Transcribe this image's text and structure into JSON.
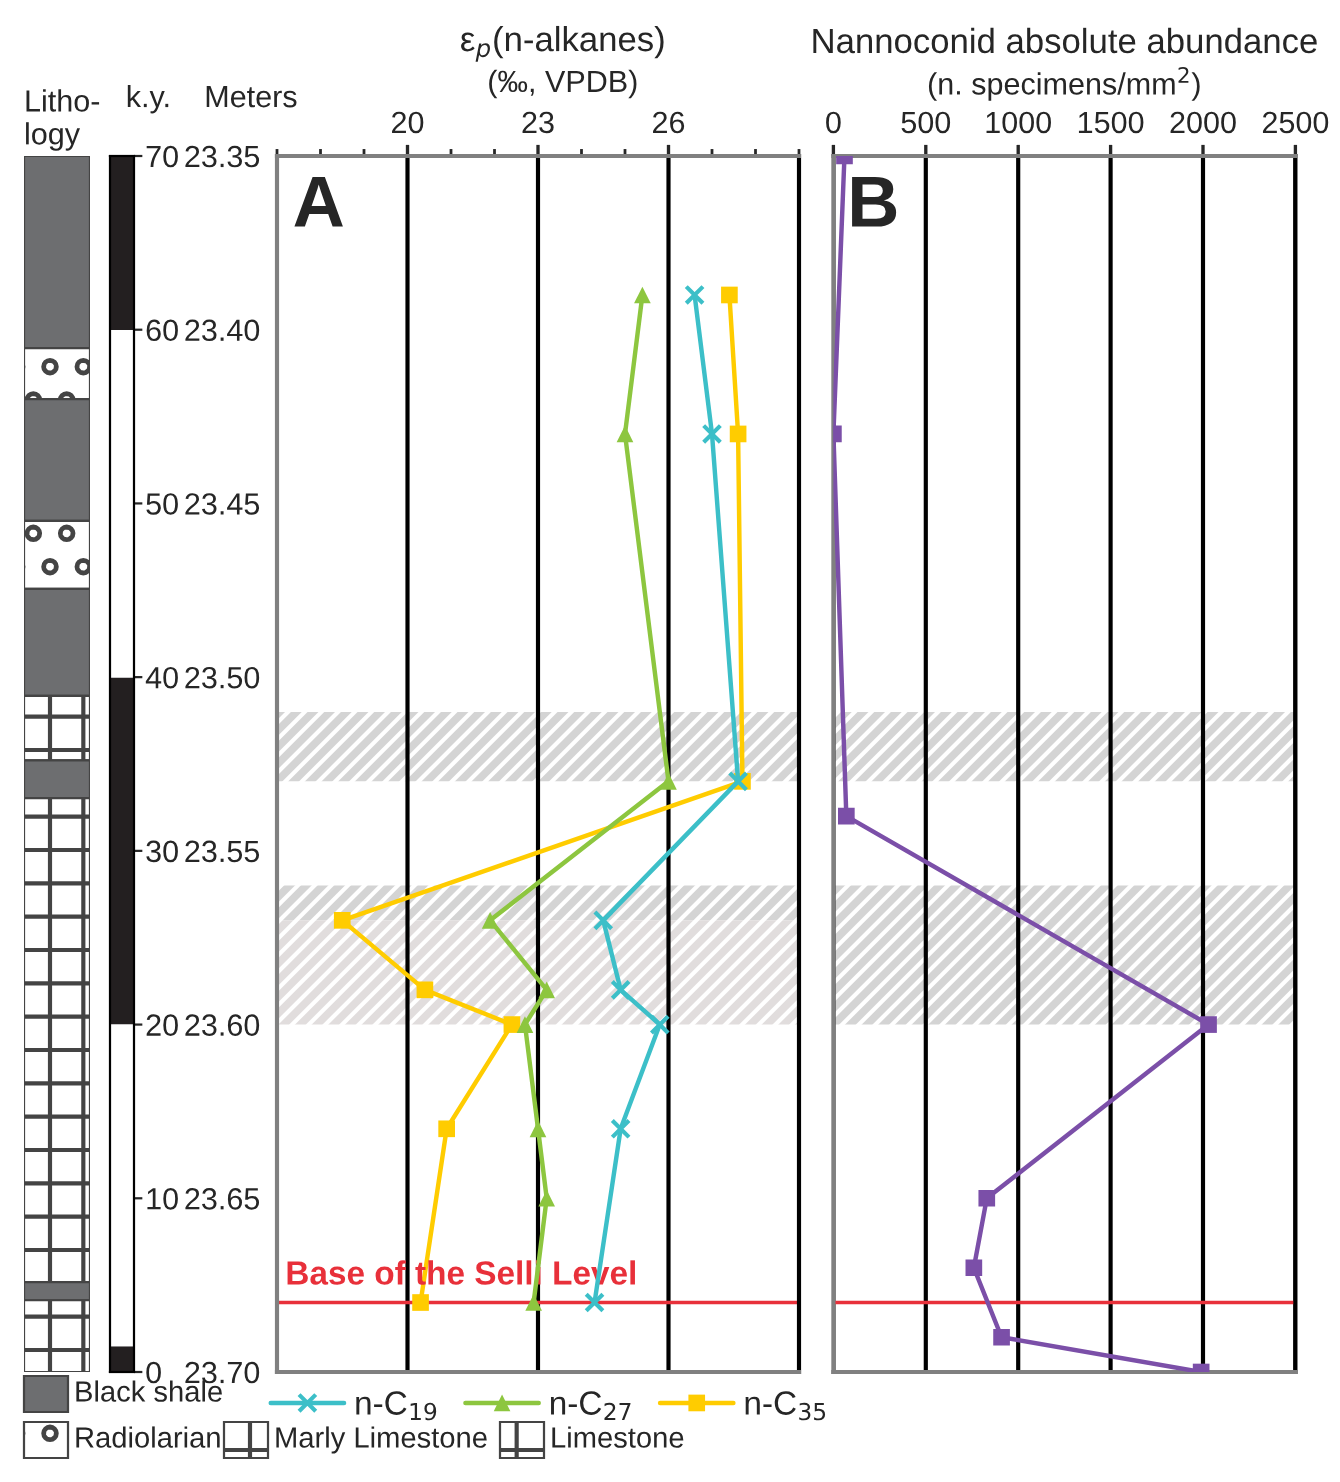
{
  "chart_data": [
    {
      "type": "line",
      "title": "ε$_{p}$(n-alkanes)",
      "subtitle": "(‰, VPDB)",
      "ylabel": "Meters",
      "y2label": "k.y.",
      "xlim": [
        17,
        29
      ],
      "xticks": [
        20,
        23,
        26
      ],
      "ylim": [
        23.7,
        23.35
      ],
      "yticks": [
        23.35,
        {
          "value": 23.4,
          "label": "23.40"
        },
        23.45,
        {
          "value": 23.5,
          "label": "23.50"
        },
        23.55,
        {
          "value": 23.6,
          "label": "23.60"
        },
        23.65,
        {
          "value": 23.7,
          "label": "23.70"
        }
      ],
      "y2lim": [
        0,
        70
      ],
      "y2ticks": [
        0,
        10,
        20,
        30,
        40,
        50,
        60,
        70
      ],
      "grid": "x",
      "legend": "bottom",
      "line_style": "solid",
      "series": [
        {
          "name": "n-C$_{19}$",
          "color": "#3cbfc8",
          "marker": "cross",
          "x": [
            26.6,
            27.0,
            27.6,
            24.5,
            24.9,
            25.8,
            24.9,
            24.3
          ],
          "values": [
            23.39,
            23.43,
            23.53,
            23.57,
            23.59,
            23.6,
            23.63,
            23.68
          ]
        },
        {
          "name": "n-C$_{27}$",
          "color": "#8dc63f",
          "marker": "triangle",
          "x": [
            25.4,
            25.0,
            26.0,
            21.9,
            23.2,
            22.7,
            23.0,
            23.2,
            22.9
          ],
          "values": [
            23.39,
            23.43,
            23.53,
            23.57,
            23.59,
            23.6,
            23.63,
            23.65,
            23.68
          ]
        },
        {
          "name": "n-C$_{35}$",
          "color": "#ffcc00",
          "marker": "square",
          "x": [
            27.4,
            27.6,
            27.7,
            18.5,
            20.4,
            22.4,
            20.9,
            20.3
          ],
          "values": [
            23.39,
            23.43,
            23.53,
            23.57,
            23.59,
            23.6,
            23.63,
            23.68
          ]
        }
      ],
      "bands": [
        {
          "axis": "y",
          "from": 23.51,
          "to": 23.53,
          "color": "#d4d4d4"
        },
        {
          "axis": "y",
          "from": 23.56,
          "to": 23.57,
          "color": "#d4d4d4"
        },
        {
          "axis": "y",
          "from": 23.57,
          "to": 23.6,
          "color": "#e1dddd"
        }
      ],
      "ref_lines": [
        {
          "axis": "y",
          "value": 23.68,
          "label": "Base of the Selli Level",
          "color": "#e8303a"
        }
      ],
      "annotations": [
        "A",
        "Litho-\nlogy",
        "Black shale",
        "Radiolarian",
        "Marly Limestone",
        "Limestone"
      ]
    },
    {
      "type": "line",
      "title": "Nannoconid absolute abundance",
      "subtitle": "(n. specimens/mm$^{2}$)",
      "xlim": [
        0,
        2500
      ],
      "xticks": [
        0,
        500,
        1000,
        1500,
        2000,
        2500
      ],
      "ylim": [
        23.7,
        23.35
      ],
      "yticks": [
        23.35,
        23.4,
        23.45,
        23.5,
        23.55,
        23.6,
        23.65,
        23.7
      ],
      "tick_labels": "x",
      "grid": "x",
      "line_style": "solid",
      "series": [
        {
          "color": "#7b4fa8",
          "marker": "square",
          "x": [
            60,
            0,
            70,
            2030,
            830,
            760,
            910,
            1990
          ],
          "values": [
            23.35,
            23.43,
            23.54,
            23.6,
            23.65,
            23.67,
            23.69,
            23.7
          ]
        }
      ],
      "bands": [
        {
          "axis": "y",
          "from": 23.51,
          "to": 23.53,
          "color": "#d4d4d4"
        },
        {
          "axis": "y",
          "from": 23.56,
          "to": 23.6,
          "color": "#d4d4d4"
        }
      ],
      "ref_lines": [
        {
          "axis": "y",
          "value": 23.68,
          "color": "#e8303a"
        }
      ],
      "annotations": [
        "B"
      ]
    }
  ]
}
